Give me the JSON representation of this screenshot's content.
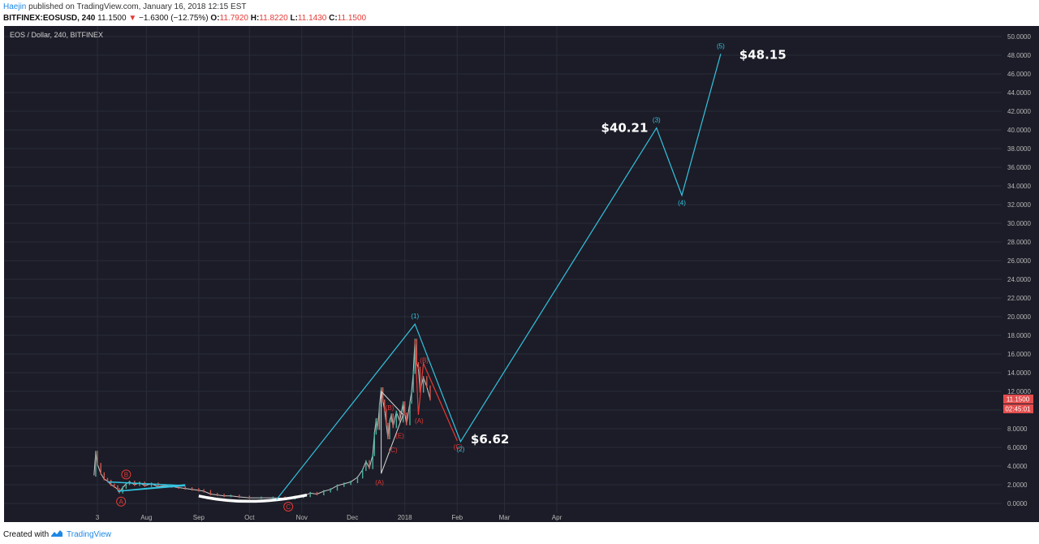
{
  "header": {
    "author": "Haejin",
    "published_text": "published on TradingView.com, January 16, 2018 12:15 EST",
    "symbol": "BITFINEX:EOSUSD, 240",
    "last": "11.1500",
    "change_arrow": "▼",
    "change": "−1.6300 (−12.75%)",
    "o_label": "O:",
    "o_value": "11.7920",
    "h_label": "H:",
    "h_value": "11.8220",
    "l_label": "L:",
    "l_value": "11.1430",
    "c_label": "C:",
    "c_value": "11.1500"
  },
  "footer": {
    "created_with": "Created with",
    "brand": "TradingView"
  },
  "chart_data": {
    "type": "line",
    "title": "EOS / Dollar, 240, BITFINEX",
    "y_axis": {
      "ylim": [
        0,
        50
      ],
      "ticks": [
        "50.0000",
        "48.0000",
        "46.0000",
        "44.0000",
        "42.0000",
        "40.0000",
        "38.0000",
        "36.0000",
        "34.0000",
        "32.0000",
        "30.0000",
        "28.0000",
        "26.0000",
        "24.0000",
        "22.0000",
        "20.0000",
        "18.0000",
        "16.0000",
        "14.0000",
        "12.0000",
        "10.0000",
        "8.0000",
        "6.0000",
        "4.0000",
        "2.0000",
        "0.0000"
      ]
    },
    "x_axis": {
      "ticks": [
        {
          "label": "3",
          "date": "2017-07-03"
        },
        {
          "label": "Aug",
          "date": "2017-08-01"
        },
        {
          "label": "Sep",
          "date": "2017-09-01"
        },
        {
          "label": "Oct",
          "date": "2017-10-01"
        },
        {
          "label": "Nov",
          "date": "2017-11-01"
        },
        {
          "label": "Dec",
          "date": "2017-12-01"
        },
        {
          "label": "2018",
          "date": "2018-01-01"
        },
        {
          "label": "Feb",
          "date": "2018-02-01"
        },
        {
          "label": "Mar",
          "date": "2018-03-01"
        },
        {
          "label": "Apr",
          "date": "2018-04-01"
        }
      ]
    },
    "price_series": {
      "name": "EOSUSD",
      "color": "#c9c9c9",
      "points": [
        [
          "2017-07-01",
          3.0
        ],
        [
          "2017-07-02",
          5.5
        ],
        [
          "2017-07-03",
          4.2
        ],
        [
          "2017-07-05",
          3.2
        ],
        [
          "2017-07-07",
          2.6
        ],
        [
          "2017-07-09",
          2.4
        ],
        [
          "2017-07-11",
          2.0
        ],
        [
          "2017-07-13",
          1.8
        ],
        [
          "2017-07-15",
          1.5
        ],
        [
          "2017-07-16",
          1.2
        ],
        [
          "2017-07-18",
          1.7
        ],
        [
          "2017-07-20",
          2.1
        ],
        [
          "2017-07-22",
          2.3
        ],
        [
          "2017-07-25",
          2.0
        ],
        [
          "2017-07-28",
          2.2
        ],
        [
          "2017-07-31",
          1.9
        ],
        [
          "2017-08-04",
          2.1
        ],
        [
          "2017-08-08",
          1.8
        ],
        [
          "2017-08-12",
          1.9
        ],
        [
          "2017-08-16",
          1.8
        ],
        [
          "2017-08-20",
          1.7
        ],
        [
          "2017-08-24",
          1.6
        ],
        [
          "2017-08-28",
          1.5
        ],
        [
          "2017-09-01",
          1.4
        ],
        [
          "2017-09-04",
          1.3
        ],
        [
          "2017-09-08",
          1.0
        ],
        [
          "2017-09-12",
          0.9
        ],
        [
          "2017-09-16",
          0.8
        ],
        [
          "2017-09-20",
          0.8
        ],
        [
          "2017-09-25",
          0.7
        ],
        [
          "2017-10-01",
          0.6
        ],
        [
          "2017-10-08",
          0.6
        ],
        [
          "2017-10-15",
          0.6
        ],
        [
          "2017-10-22",
          0.55
        ],
        [
          "2017-10-28",
          0.7
        ],
        [
          "2017-11-02",
          0.8
        ],
        [
          "2017-11-06",
          1.1
        ],
        [
          "2017-11-10",
          1.0
        ],
        [
          "2017-11-14",
          1.3
        ],
        [
          "2017-11-18",
          1.5
        ],
        [
          "2017-11-22",
          1.9
        ],
        [
          "2017-11-26",
          2.1
        ],
        [
          "2017-11-30",
          2.3
        ],
        [
          "2017-12-04",
          2.8
        ],
        [
          "2017-12-07",
          3.6
        ],
        [
          "2017-12-09",
          4.5
        ],
        [
          "2017-12-11",
          3.8
        ],
        [
          "2017-12-13",
          5.2
        ],
        [
          "2017-12-14",
          7.5
        ],
        [
          "2017-12-15",
          9.0
        ],
        [
          "2017-12-16",
          8.0
        ],
        [
          "2017-12-17",
          10.5
        ],
        [
          "2017-12-18",
          12.3
        ],
        [
          "2017-12-19",
          11.0
        ],
        [
          "2017-12-20",
          10.0
        ],
        [
          "2017-12-21",
          8.5
        ],
        [
          "2017-12-22",
          7.0
        ],
        [
          "2017-12-23",
          8.8
        ],
        [
          "2017-12-24",
          9.5
        ],
        [
          "2017-12-25",
          8.2
        ],
        [
          "2017-12-27",
          9.8
        ],
        [
          "2017-12-29",
          8.8
        ],
        [
          "2017-12-31",
          10.8
        ],
        [
          "2018-01-01",
          9.6
        ],
        [
          "2018-01-02",
          8.5
        ],
        [
          "2018-01-04",
          10.8
        ],
        [
          "2018-01-05",
          12.0
        ],
        [
          "2018-01-06",
          14.0
        ],
        [
          "2018-01-07",
          17.5
        ],
        [
          "2018-01-08",
          15.0
        ],
        [
          "2018-01-09",
          14.5
        ],
        [
          "2018-01-10",
          12.0
        ],
        [
          "2018-01-12",
          13.5
        ],
        [
          "2018-01-14",
          12.5
        ],
        [
          "2018-01-16",
          11.15
        ]
      ]
    },
    "wave_count": {
      "color": "#33c3e0",
      "name": "",
      "points": [
        {
          "date": "2017-10-17",
          "value": 0.4,
          "label": ""
        },
        {
          "date": "2018-01-07",
          "value": 19.2,
          "label": "(1)"
        },
        {
          "date": "2018-02-03",
          "value": 6.62,
          "label": "(2)"
        },
        {
          "date": "2018-05-30",
          "value": 40.21,
          "label": "(3)"
        },
        {
          "date": "2018-06-14",
          "value": 33.0,
          "label": "(4)"
        },
        {
          "date": "2018-07-07",
          "value": 48.15,
          "label": "(5)"
        }
      ]
    },
    "correction_path": {
      "color": "#e53935",
      "points": [
        {
          "date": "2018-01-07",
          "value": 17.5,
          "label": ""
        },
        {
          "date": "2018-01-09",
          "value": 9.5,
          "label": "(A)"
        },
        {
          "date": "2018-01-12",
          "value": 15.0,
          "label": "(B)"
        },
        {
          "date": "2018-02-01",
          "value": 6.7,
          "label": "(C)"
        }
      ]
    },
    "triangle_labels": [
      {
        "date": "2017-12-17",
        "value": 2.0,
        "label": "(A)"
      },
      {
        "date": "2017-12-23",
        "value": 10.0,
        "label": "(B)"
      },
      {
        "date": "2017-12-25",
        "value": 5.5,
        "label": "(C)"
      },
      {
        "date": "2017-12-29",
        "value": 7.0,
        "label": "(E)"
      }
    ],
    "early_labels": [
      {
        "date": "2017-07-20",
        "value": 3.1,
        "label": "B"
      },
      {
        "date": "2017-07-17",
        "value": 0.2,
        "label": "A"
      },
      {
        "date": "2017-10-24",
        "value": -0.35,
        "label": "C"
      }
    ],
    "price_targets": [
      {
        "text": "$48.15",
        "value": 48.15
      },
      {
        "text": "$40.21",
        "value": 40.21
      },
      {
        "text": "$6.62",
        "value": 6.62
      }
    ],
    "current_price_label": "11.1500",
    "countdown_label": "02:45:01",
    "grid": true
  }
}
